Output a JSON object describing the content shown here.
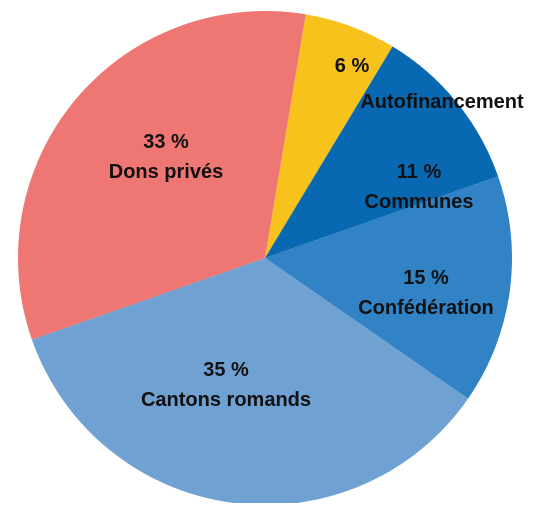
{
  "chart_data": {
    "type": "pie",
    "slices": [
      {
        "label": "Autofinancement",
        "value": 6,
        "value_label": "6 %",
        "color": "#F8C21C"
      },
      {
        "label": "Communes",
        "value": 11,
        "value_label": "11 %",
        "color": "#0868B1"
      },
      {
        "label": "Confédération",
        "value": 15,
        "value_label": "15 %",
        "color": "#3283C6"
      },
      {
        "label": "Cantons romands",
        "value": 35,
        "value_label": "35 %",
        "color": "#6FA1D3"
      },
      {
        "label": "Dons privés",
        "value": 33,
        "value_label": "33 %",
        "color": "#EF7773"
      }
    ]
  }
}
